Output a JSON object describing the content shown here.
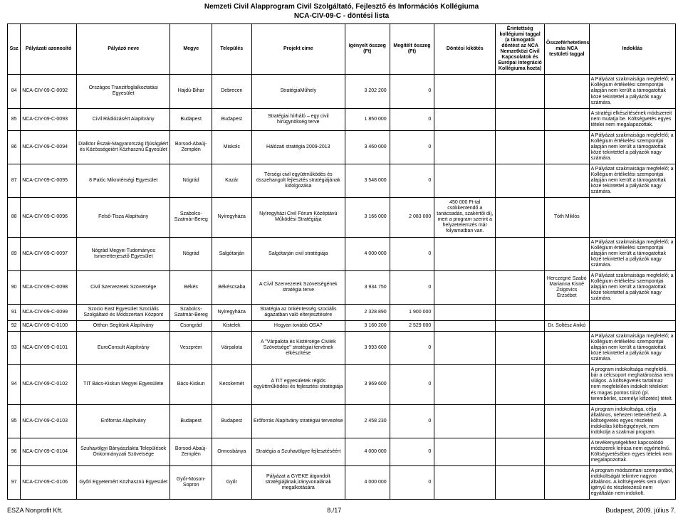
{
  "title_line1": "Nemzeti Civil Alapprogram Civil Szolgáltató, Fejlesztő és Információs Kollégiuma",
  "title_line2": "NCA-CIV-09-C - döntési lista",
  "headers": {
    "ssz": "Ssz",
    "azonosito": "Pályázati azonosító",
    "nev": "Pályázó neve",
    "megye": "Megye",
    "telepules": "Település",
    "projekt": "Projekt címe",
    "igenyelt": "Igényelt összeg (Ft)",
    "megitelt": "Megítélt összeg (Ft)",
    "kikotes": "Döntési kikötés",
    "erintettseg": "Érintettség kollégiumi taggal (a támogatói döntést az NCA Nemzetközi Civil Kapcsolatok és Európai Integráció Kollégiuma hozta)",
    "osszefer": "Összeférhetetlenség más NCA testületi taggal",
    "indoklas": "Indoklás"
  },
  "rows": [
    {
      "ssz": "84",
      "azon": "NCA-CIV-09-C-0092",
      "nev": "Országos Tranzitfoglalkoztatási Egyesület",
      "megye": "Hajdú-Bihar",
      "tel": "Debrecen",
      "proj": "StratégiaMűhely",
      "ig": "3 202 200",
      "meg": "0",
      "kik": "",
      "erint": "",
      "oss": "",
      "ind": "A Pályázat szakmaisága megfelelő; a Kollégium értékelési szempontjai alapján nem került a támogatottak közé tekintettel a pályázók nagy számára."
    },
    {
      "ssz": "85",
      "azon": "NCA-CIV-09-C-0093",
      "nev": "Civil Rádiózásért Alapítvány",
      "megye": "Budapest",
      "tel": "Budapest",
      "proj": "Stratégiai hírháló – egy civil hírügynökség terve",
      "ig": "1 850 000",
      "meg": "0",
      "kik": "",
      "erint": "",
      "oss": "",
      "ind": "A stratégi elkészítésének módszereit nem mutatja be. Költségvetés egyes tételei nem megalapozottak."
    },
    {
      "ssz": "86",
      "azon": "NCA-CIV-09-C-0094",
      "nev": "Dialktor Észak-Magyarország Ifjúságáért és Közösségeiért Közhasznú Egyesület",
      "megye": "Borsod-Abaúj-Zemplén",
      "tel": "Miskolc",
      "proj": "Hálózati stratégia 2009-2013",
      "ig": "3 460 000",
      "meg": "0",
      "kik": "",
      "erint": "",
      "oss": "",
      "ind": "A Pályázat szakmaisága megfelelő; a Kollégium értékelési szempontjai alapján nem került a támogatottak közé tekintettel a pályázók nagy számára."
    },
    {
      "ssz": "87",
      "azon": "NCA-CIV-09-C-0095",
      "nev": "8 Palóc Mikrotérségi Egyesület",
      "megye": "Nógrád",
      "tel": "Kazár",
      "proj": "Térségi civil együttműködés és összehangolt fejlesztés stratégiájának kidolgozása",
      "ig": "3 548 000",
      "meg": "0",
      "kik": "",
      "erint": "",
      "oss": "",
      "ind": "A Pályázat szakmaisága megfelelő; a Kollégium értékelési szempontjai alapján nem került a támogatottak közé tekintettel a pályázók nagy számára."
    },
    {
      "ssz": "88",
      "azon": "NCA-CIV-09-C-0096",
      "nev": "Felső-Tisza Alapítvány",
      "megye": "Szabolcs-Szatmár-Bereg",
      "tel": "Nyíregyháza",
      "proj": "Nyíregyházi Civil Fórum Középtávú Működési Stratégiája",
      "ig": "3 166 000",
      "meg": "2 083 000",
      "kik": "450 000 Ft-tal csökkentendő a tanácsadás, szakértői díj, mert a program szerint a helyzetelemzés már folyamatban van.",
      "erint": "",
      "oss": "Tóth Miklós",
      "ind": ""
    },
    {
      "ssz": "89",
      "azon": "NCA-CIV-09-C-0097",
      "nev": "Nógrád Megyei Tudományos Ismeretterjesztő Egyesület",
      "megye": "Nógrád",
      "tel": "Salgótarján",
      "proj": "Salgótarján civil stratégiája",
      "ig": "4 000 000",
      "meg": "0",
      "kik": "",
      "erint": "",
      "oss": "",
      "ind": "A Pályázat szakmaisága megfelelő; a Kollégium értékelési szempontjai alapján nem került a támogatottak közé tekintettel a pályázók nagy számára."
    },
    {
      "ssz": "90",
      "azon": "NCA-CIV-09-C-0098",
      "nev": "Civil Szervezetek Szövetsége",
      "megye": "Békés",
      "tel": "Békéscsaba",
      "proj": "A Civil Szervezetek Szövetségének stratégia terve",
      "ig": "3 934 750",
      "meg": "0",
      "kik": "",
      "erint": "",
      "oss": "Herczegné Szabó Marianna Kisné Zsigovics Erzsébet",
      "ind": "A Pályázat szakmaisága megfelelő; a Kollégium értékelési szempontjai alapján nem került a támogatottak közé tekintettel a pályázók nagy számára."
    },
    {
      "ssz": "91",
      "azon": "NCA-CIV-09-C-0099",
      "nev": "Szocio East Egyesület Szociális Szolgáltató és Módszertani Központ",
      "megye": "Szabolcs-Szatmár-Bereg",
      "tel": "Nyíregyháza",
      "proj": "Stratégia az önkéntesség szociális ágazatban való elterjesztésére",
      "ig": "2 328 890",
      "meg": "1 900 000",
      "kik": "",
      "erint": "",
      "oss": "",
      "ind": ""
    },
    {
      "ssz": "92",
      "azon": "NCA-CIV-09-C-0100",
      "nev": "Otthon Segítünk Alapítvány",
      "megye": "Csongrád",
      "tel": "Kistelek",
      "proj": "Hogyan tovább OSA?",
      "ig": "3 160 200",
      "meg": "2 529 000",
      "kik": "",
      "erint": "",
      "oss": "Dr. Soltész Anikó",
      "ind": ""
    },
    {
      "ssz": "93",
      "azon": "NCA-CIV-09-C-0101",
      "nev": "EuroConsult Alapítvány",
      "megye": "Veszprém",
      "tel": "Várpalota",
      "proj": "A \"Várpalota és Kistérsége Civilek Szövetsége\" stratégiai tervének elkészítése",
      "ig": "3 993 600",
      "meg": "0",
      "kik": "",
      "erint": "",
      "oss": "",
      "ind": "A Pályázat szakmaisága megfelelő; a Kollégium értékelési szempontjai alapján nem került a támogatottak közé tekintettel a pályázók nagy számára."
    },
    {
      "ssz": "94",
      "azon": "NCA-CIV-09-C-0102",
      "nev": "TIT Bács-Kiskun Megyei Egyesülete",
      "megye": "Bács-Kiskun",
      "tel": "Kecskemét",
      "proj": "A TIT egyesületek régiós együttműködési és fejlesztési stratégiája",
      "ig": "3 969 600",
      "meg": "0",
      "kik": "",
      "erint": "",
      "oss": "",
      "ind": "A program indokoltsága megfelelő, bár a célcsoport meghatározása nem világos. A költségvetés tartalmaz nem megfelelően indokolt tételeket és magas pontos túlzó (pl. terembérlet, személyi kifizetés) tételt."
    },
    {
      "ssz": "95",
      "azon": "NCA-CIV-09-C-0103",
      "nev": "Erőforrás Alapítvány",
      "megye": "Budapest",
      "tel": "Budapest",
      "proj": "Erőforrás Alapítvány stratégiai tervezése",
      "ig": "2 458 230",
      "meg": "0",
      "kik": "",
      "erint": "",
      "oss": "",
      "ind": "A program indokoltsága, célja általános, nehezen tettenérhető. A költségvetés egyes részletei indokolás költségigények, nem indokolja a szakmai program."
    },
    {
      "ssz": "96",
      "azon": "NCA-CIV-09-C-0104",
      "nev": "Szuhavölgyi Bányászlakta Települések Önkormányzati Szövetsége",
      "megye": "Borsod-Abaúj-Zemplén",
      "tel": "Ormosbánya",
      "proj": "Stratégia a Szuhavölgye fejlesztéséért",
      "ig": "4 000 000",
      "meg": "0",
      "kik": "",
      "erint": "",
      "oss": "",
      "ind": "A tevékenységekhez kapcsolódó módszerek leírása nem egyértelmű. Költségvetésében egyes tételek nem megalapozottak."
    },
    {
      "ssz": "97",
      "azon": "NCA-CIV-09-C-0106",
      "nev": "Győri Egyetemért Közhasznú Egyesület",
      "megye": "Győr-Moson-Sopron",
      "tel": "Győr",
      "proj": "Pályázat a GYEKE átgondolt stratégiájának,irányvonalának megalkotására",
      "ig": "4 000 000",
      "meg": "0",
      "kik": "",
      "erint": "",
      "oss": "",
      "ind": "A program módszertani szempontból, indokoltságát tekintve nagyon általános. A költségvetés sem olyan igényű és részletezésű nem egyáltalán nem indokolt."
    }
  ],
  "footer": {
    "left": "ESZA Nonprofit Kft.",
    "center": "8./17",
    "right": "Budapest, 2009. július 7."
  }
}
